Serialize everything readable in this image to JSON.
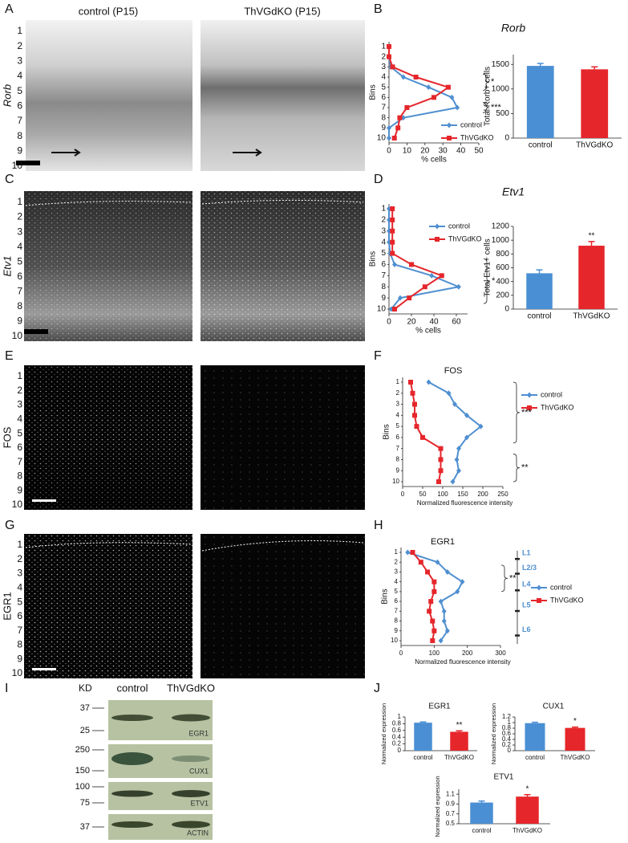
{
  "panel_labels": [
    "A",
    "B",
    "C",
    "D",
    "E",
    "F",
    "G",
    "H",
    "I",
    "J"
  ],
  "micrographs": {
    "column_titles": [
      "control (P15)",
      "ThVGdKO (P15)"
    ],
    "rows": [
      {
        "gene": "Rorb"
      },
      {
        "gene": "Etv1"
      },
      {
        "gene": "FOS"
      },
      {
        "gene": "EGR1"
      }
    ],
    "bins": [
      1,
      2,
      3,
      4,
      5,
      6,
      7,
      8,
      9,
      10
    ]
  },
  "western": {
    "unit": "KD",
    "columns": [
      "control",
      "ThVGdKO"
    ],
    "blots": [
      {
        "name": "EGR1",
        "markers": [
          37,
          25
        ]
      },
      {
        "name": "CUX1",
        "markers": [
          250,
          150
        ]
      },
      {
        "name": "ETV1",
        "markers": [
          100,
          75
        ]
      },
      {
        "name": "ACTIN",
        "markers": [
          37
        ]
      }
    ]
  },
  "chart_data": [
    {
      "type": "line",
      "title": "Rorb",
      "x_label": "% cells",
      "y_label": "Bins",
      "categories": [
        1,
        2,
        3,
        4,
        5,
        6,
        7,
        8,
        9,
        10
      ],
      "series": [
        {
          "name": "control",
          "color": "#4f8fd0",
          "marker": "diamond",
          "values": [
            0,
            0,
            1,
            8,
            22,
            35,
            38,
            8,
            0,
            0
          ]
        },
        {
          "name": "ThVGdKO",
          "color": "#e5262b",
          "marker": "square",
          "values": [
            0,
            0,
            2,
            15,
            33,
            25,
            10,
            6,
            5,
            3
          ]
        }
      ],
      "xlim": [
        0,
        50
      ],
      "xticks": [
        0,
        10,
        20,
        30,
        40,
        50
      ],
      "annotations": [
        "*",
        "***"
      ],
      "legend": "lower right"
    },
    {
      "type": "bar",
      "y_label": "Total Rorb+ cells",
      "categories": [
        "control",
        "ThVGdKO"
      ],
      "values": [
        1470,
        1400
      ],
      "errors": [
        50,
        50
      ],
      "colors": [
        "#4a8fd4",
        "#e5262b"
      ],
      "ylim": [
        0,
        1700
      ],
      "yticks": [
        0,
        500,
        1000,
        1500
      ],
      "annotations": []
    },
    {
      "type": "line",
      "title": "Etv1",
      "x_label": "% cells",
      "y_label": "Bins",
      "categories": [
        1,
        2,
        3,
        4,
        5,
        6,
        7,
        8,
        9,
        10
      ],
      "series": [
        {
          "name": "control",
          "color": "#4f8fd0",
          "marker": "diamond",
          "values": [
            0,
            0,
            0,
            0,
            1,
            5,
            38,
            62,
            10,
            2
          ]
        },
        {
          "name": "ThVGdKO",
          "color": "#e5262b",
          "marker": "square",
          "values": [
            3,
            3,
            3,
            3,
            3,
            20,
            47,
            32,
            18,
            5
          ]
        }
      ],
      "xlim": [
        0,
        70
      ],
      "xticks": [
        0,
        20,
        40,
        60
      ],
      "annotations": [
        "*"
      ],
      "legend": "upper right"
    },
    {
      "type": "bar",
      "y_label": "Total Etv1+ cells",
      "categories": [
        "control",
        "ThVGdKO"
      ],
      "values": [
        520,
        920
      ],
      "errors": [
        50,
        60
      ],
      "colors": [
        "#4a8fd4",
        "#e5262b"
      ],
      "ylim": [
        0,
        1200
      ],
      "yticks": [
        0,
        200,
        400,
        600,
        800,
        1000,
        1200
      ],
      "annotations": [
        "**"
      ]
    },
    {
      "type": "line",
      "title": "FOS",
      "x_label": "Normalized fluorescence intensity",
      "y_label": "Bins",
      "categories": [
        1,
        2,
        3,
        4,
        5,
        6,
        7,
        8,
        9,
        10
      ],
      "series": [
        {
          "name": "control",
          "color": "#4f8fd0",
          "marker": "diamond",
          "values": [
            65,
            115,
            130,
            160,
            195,
            160,
            140,
            135,
            140,
            125
          ]
        },
        {
          "name": "ThVGdKO",
          "color": "#e5262b",
          "marker": "square",
          "values": [
            20,
            25,
            30,
            30,
            35,
            50,
            95,
            95,
            95,
            90
          ]
        }
      ],
      "xlim": [
        0,
        250
      ],
      "xticks": [
        0,
        50,
        100,
        150,
        200,
        250
      ],
      "annotations": [
        "***",
        "**"
      ],
      "legend": "upper right"
    },
    {
      "type": "line",
      "title": "EGR1",
      "x_label": "Normalized fluorescence intensity",
      "y_label": "Bins",
      "categories": [
        1,
        2,
        3,
        4,
        5,
        6,
        7,
        8,
        9,
        10
      ],
      "series": [
        {
          "name": "control",
          "color": "#4f8fd0",
          "marker": "diamond",
          "values": [
            20,
            110,
            140,
            185,
            170,
            120,
            130,
            130,
            140,
            120
          ]
        },
        {
          "name": "ThVGdKO",
          "color": "#e5262b",
          "marker": "square",
          "values": [
            35,
            60,
            80,
            100,
            100,
            90,
            85,
            95,
            100,
            95
          ]
        }
      ],
      "xlim": [
        0,
        300
      ],
      "xticks": [
        0,
        100,
        200,
        300
      ],
      "annotations": [
        "**"
      ],
      "legend": "right",
      "layer_labels": [
        "L1",
        "L2/3",
        "L4",
        "L5",
        "L6"
      ]
    },
    {
      "type": "bar",
      "title": "EGR1",
      "y_label": "Normalized expression",
      "categories": [
        "control",
        "ThVGdKO"
      ],
      "values": [
        0.83,
        0.56
      ],
      "errors": [
        0.02,
        0.03
      ],
      "colors": [
        "#4a8fd4",
        "#e5262b"
      ],
      "ylim": [
        0,
        1
      ],
      "yticks": [
        0,
        0.2,
        0.4,
        0.6,
        0.8,
        1
      ],
      "annotations": [
        "**"
      ]
    },
    {
      "type": "bar",
      "title": "CUX1",
      "y_label": "Normalized expression",
      "categories": [
        "control",
        "ThVGdKO"
      ],
      "values": [
        0.98,
        0.81
      ],
      "errors": [
        0.03,
        0.03
      ],
      "colors": [
        "#4a8fd4",
        "#e5262b"
      ],
      "ylim": [
        0,
        1.2
      ],
      "yticks": [
        0,
        0.2,
        0.4,
        0.6,
        0.8,
        1,
        1.2
      ],
      "annotations": [
        "*"
      ]
    },
    {
      "type": "bar",
      "title": "ETV1",
      "y_label": "Normalized expression",
      "categories": [
        "control",
        "ThVGdKO"
      ],
      "values": [
        0.93,
        1.05
      ],
      "errors": [
        0.03,
        0.04
      ],
      "colors": [
        "#4a8fd4",
        "#e5262b"
      ],
      "ylim": [
        0.5,
        1.2
      ],
      "yticks": [
        0.5,
        0.7,
        0.9,
        1.1
      ],
      "annotations": [
        "*"
      ]
    }
  ]
}
